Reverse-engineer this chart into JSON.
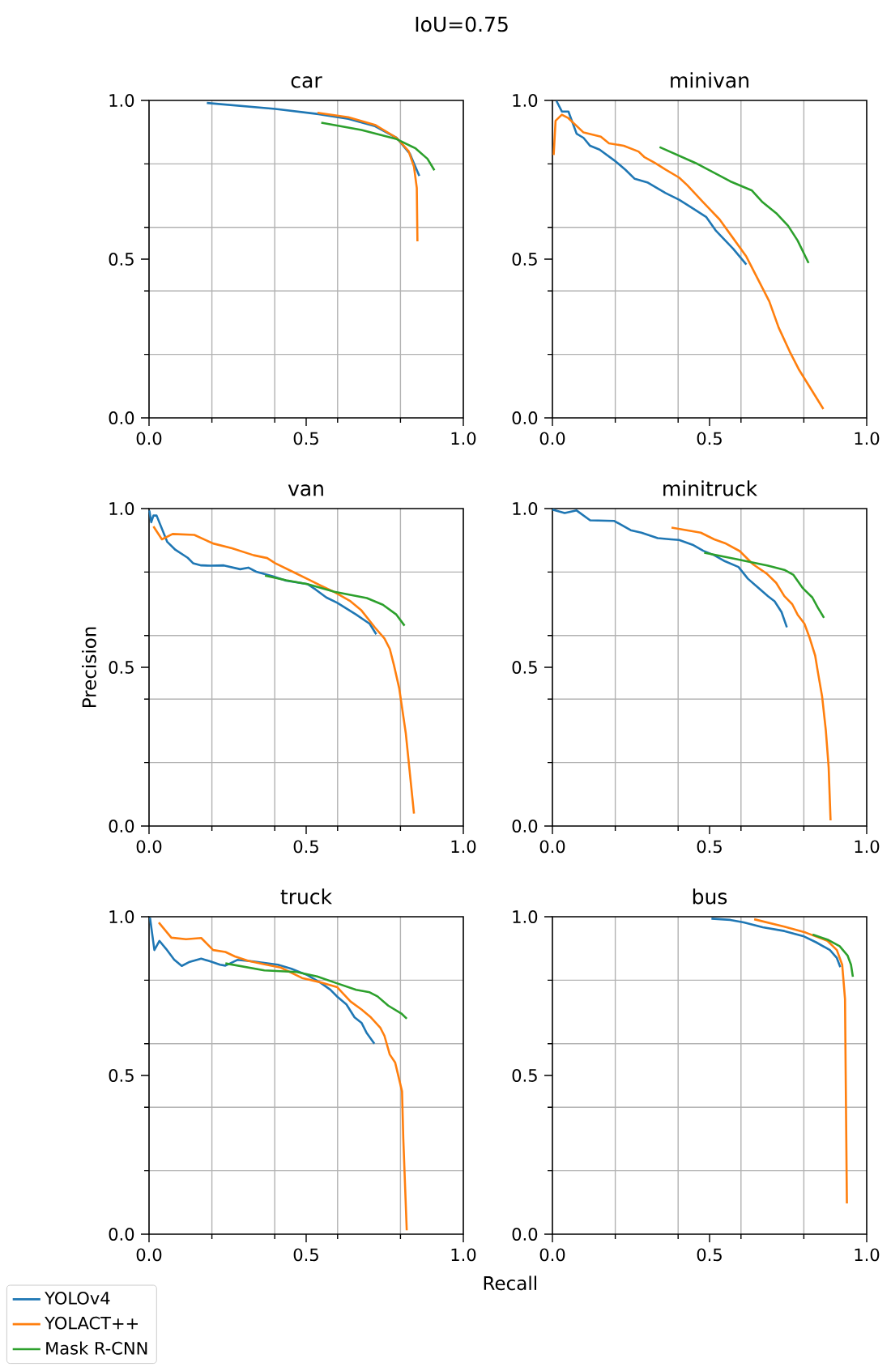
{
  "chart_data": [
    {
      "type": "line",
      "title": "car",
      "annotations": [
        "IoU=0.75"
      ],
      "xlim": [
        0,
        1
      ],
      "ylim": [
        0,
        1
      ],
      "grid": true,
      "xticks": [
        {
          "value": 0,
          "label": "0.0"
        },
        {
          "value": 0.2,
          "label": null
        },
        {
          "value": 0.4,
          "label": null
        },
        {
          "value": 0.5,
          "label": "0.5"
        },
        {
          "value": 0.6,
          "label": null
        },
        {
          "value": 0.8,
          "label": null
        },
        {
          "value": 1,
          "label": "1.0"
        }
      ],
      "yticks": [
        {
          "value": 0,
          "label": "0.0"
        },
        {
          "value": 0.2,
          "label": null
        },
        {
          "value": 0.4,
          "label": null
        },
        {
          "value": 0.5,
          "label": "0.5"
        },
        {
          "value": 0.6,
          "label": null
        },
        {
          "value": 0.8,
          "label": null
        },
        {
          "value": 1,
          "label": "1.0"
        }
      ],
      "series": [
        {
          "color": "#1f77b4",
          "x": [
            0.184,
            0.402,
            0.539,
            0.634,
            0.719,
            0.788,
            0.83,
            0.86
          ],
          "values": [
            0.992,
            0.973,
            0.957,
            0.942,
            0.919,
            0.882,
            0.832,
            0.762
          ]
        },
        {
          "color": "#ff7f0e",
          "x": [
            0.536,
            0.634,
            0.719,
            0.788,
            0.826,
            0.843,
            0.852,
            0.854
          ],
          "values": [
            0.961,
            0.947,
            0.923,
            0.882,
            0.84,
            0.791,
            0.724,
            0.556
          ]
        },
        {
          "color": "#2ca02c",
          "x": [
            0.548,
            0.676,
            0.788,
            0.848,
            0.886,
            0.908
          ],
          "values": [
            0.93,
            0.907,
            0.878,
            0.849,
            0.816,
            0.78
          ]
        }
      ]
    },
    {
      "type": "line",
      "title": "minivan",
      "xlim": [
        0,
        1
      ],
      "ylim": [
        0,
        1
      ],
      "grid": true,
      "xticks": [
        {
          "value": 0,
          "label": "0.0"
        },
        {
          "value": 0.2,
          "label": null
        },
        {
          "value": 0.4,
          "label": null
        },
        {
          "value": 0.5,
          "label": "0.5"
        },
        {
          "value": 0.6,
          "label": null
        },
        {
          "value": 0.8,
          "label": null
        },
        {
          "value": 1,
          "label": "1.0"
        }
      ],
      "yticks": [
        {
          "value": 0,
          "label": "0.0"
        },
        {
          "value": 0.2,
          "label": null
        },
        {
          "value": 0.4,
          "label": null
        },
        {
          "value": 0.5,
          "label": "0.5"
        },
        {
          "value": 0.6,
          "label": null
        },
        {
          "value": 0.8,
          "label": null
        },
        {
          "value": 1,
          "label": "1.0"
        }
      ],
      "series": [
        {
          "color": "#1f77b4",
          "x": [
            0.013,
            0.03,
            0.051,
            0.077,
            0.099,
            0.12,
            0.15,
            0.197,
            0.232,
            0.262,
            0.304,
            0.36,
            0.403,
            0.45,
            0.489,
            0.519,
            0.575,
            0.617
          ],
          "values": [
            0.998,
            0.965,
            0.965,
            0.895,
            0.882,
            0.857,
            0.845,
            0.811,
            0.782,
            0.753,
            0.741,
            0.708,
            0.687,
            0.658,
            0.633,
            0.591,
            0.533,
            0.483
          ]
        },
        {
          "color": "#ff7f0e",
          "x": [
            0.004,
            0.01,
            0.03,
            0.051,
            0.099,
            0.154,
            0.18,
            0.227,
            0.274,
            0.292,
            0.326,
            0.36,
            0.403,
            0.429,
            0.48,
            0.532,
            0.575,
            0.617,
            0.66,
            0.69,
            0.72,
            0.755,
            0.785,
            0.862
          ],
          "values": [
            0.828,
            0.936,
            0.955,
            0.944,
            0.899,
            0.886,
            0.865,
            0.857,
            0.839,
            0.822,
            0.803,
            0.782,
            0.757,
            0.733,
            0.679,
            0.625,
            0.566,
            0.508,
            0.425,
            0.367,
            0.284,
            0.209,
            0.151,
            0.028
          ]
        },
        {
          "color": "#2ca02c",
          "x": [
            0.341,
            0.455,
            0.566,
            0.635,
            0.669,
            0.712,
            0.75,
            0.78,
            0.815
          ],
          "values": [
            0.853,
            0.803,
            0.745,
            0.716,
            0.679,
            0.645,
            0.605,
            0.559,
            0.488
          ]
        }
      ]
    },
    {
      "type": "line",
      "title": "van",
      "ylabel": "Precision",
      "xlim": [
        0,
        1
      ],
      "ylim": [
        0,
        1
      ],
      "grid": true,
      "xticks": [
        {
          "value": 0,
          "label": "0.0"
        },
        {
          "value": 0.2,
          "label": null
        },
        {
          "value": 0.4,
          "label": null
        },
        {
          "value": 0.5,
          "label": "0.5"
        },
        {
          "value": 0.6,
          "label": null
        },
        {
          "value": 0.8,
          "label": null
        },
        {
          "value": 1,
          "label": "1.0"
        }
      ],
      "yticks": [
        {
          "value": 0,
          "label": "0.0"
        },
        {
          "value": 0.2,
          "label": null
        },
        {
          "value": 0.4,
          "label": null
        },
        {
          "value": 0.5,
          "label": "0.5"
        },
        {
          "value": 0.6,
          "label": null
        },
        {
          "value": 0.8,
          "label": null
        },
        {
          "value": 1,
          "label": "1.0"
        }
      ],
      "series": [
        {
          "color": "#1f77b4",
          "x": [
            0.001,
            0.007,
            0.014,
            0.024,
            0.058,
            0.084,
            0.123,
            0.14,
            0.166,
            0.196,
            0.238,
            0.29,
            0.316,
            0.341,
            0.393,
            0.436,
            0.504,
            0.53,
            0.564,
            0.599,
            0.659,
            0.702,
            0.723
          ],
          "values": [
            0.994,
            0.957,
            0.978,
            0.978,
            0.895,
            0.87,
            0.845,
            0.828,
            0.821,
            0.82,
            0.821,
            0.809,
            0.814,
            0.801,
            0.787,
            0.773,
            0.762,
            0.745,
            0.72,
            0.703,
            0.666,
            0.637,
            0.604
          ]
        },
        {
          "color": "#ff7f0e",
          "x": [
            0.014,
            0.041,
            0.075,
            0.144,
            0.204,
            0.264,
            0.333,
            0.376,
            0.401,
            0.461,
            0.513,
            0.547,
            0.59,
            0.641,
            0.676,
            0.719,
            0.749,
            0.766,
            0.779,
            0.796,
            0.817,
            0.843
          ],
          "values": [
            0.944,
            0.903,
            0.92,
            0.917,
            0.89,
            0.875,
            0.853,
            0.844,
            0.828,
            0.799,
            0.774,
            0.757,
            0.737,
            0.708,
            0.679,
            0.625,
            0.591,
            0.558,
            0.508,
            0.434,
            0.292,
            0.039
          ]
        },
        {
          "color": "#2ca02c",
          "x": [
            0.369,
            0.436,
            0.504,
            0.59,
            0.693,
            0.744,
            0.787,
            0.813
          ],
          "values": [
            0.789,
            0.774,
            0.762,
            0.738,
            0.718,
            0.697,
            0.666,
            0.631
          ]
        }
      ]
    },
    {
      "type": "line",
      "title": "minitruck",
      "xlim": [
        0,
        1
      ],
      "ylim": [
        0,
        1
      ],
      "grid": true,
      "xticks": [
        {
          "value": 0,
          "label": "0.0"
        },
        {
          "value": 0.2,
          "label": null
        },
        {
          "value": 0.4,
          "label": null
        },
        {
          "value": 0.5,
          "label": "0.5"
        },
        {
          "value": 0.6,
          "label": null
        },
        {
          "value": 0.8,
          "label": null
        },
        {
          "value": 1,
          "label": "1.0"
        }
      ],
      "yticks": [
        {
          "value": 0,
          "label": "0.0"
        },
        {
          "value": 0.2,
          "label": null
        },
        {
          "value": 0.4,
          "label": null
        },
        {
          "value": 0.5,
          "label": "0.5"
        },
        {
          "value": 0.6,
          "label": null
        },
        {
          "value": 0.8,
          "label": null
        },
        {
          "value": 1,
          "label": "1.0"
        }
      ],
      "series": [
        {
          "color": "#1f77b4",
          "x": [
            0,
            0.039,
            0.077,
            0.12,
            0.197,
            0.249,
            0.283,
            0.335,
            0.377,
            0.403,
            0.446,
            0.48,
            0.515,
            0.549,
            0.592,
            0.622,
            0.652,
            0.686,
            0.707,
            0.729,
            0.746
          ],
          "values": [
            0.997,
            0.986,
            0.994,
            0.963,
            0.961,
            0.932,
            0.924,
            0.907,
            0.903,
            0.901,
            0.886,
            0.867,
            0.853,
            0.834,
            0.816,
            0.779,
            0.753,
            0.724,
            0.708,
            0.674,
            0.626
          ]
        },
        {
          "color": "#ff7f0e",
          "x": [
            0.379,
            0.472,
            0.515,
            0.549,
            0.596,
            0.639,
            0.682,
            0.712,
            0.738,
            0.763,
            0.78,
            0.802,
            0.819,
            0.836,
            0.845,
            0.858,
            0.87,
            0.879,
            0.885
          ],
          "values": [
            0.94,
            0.924,
            0.903,
            0.891,
            0.866,
            0.824,
            0.795,
            0.766,
            0.724,
            0.699,
            0.666,
            0.637,
            0.591,
            0.537,
            0.483,
            0.409,
            0.301,
            0.184,
            0.018
          ]
        },
        {
          "color": "#2ca02c",
          "x": [
            0.483,
            0.583,
            0.686,
            0.738,
            0.767,
            0.797,
            0.827,
            0.845,
            0.864
          ],
          "values": [
            0.861,
            0.841,
            0.82,
            0.807,
            0.791,
            0.749,
            0.72,
            0.687,
            0.656
          ]
        }
      ]
    },
    {
      "type": "line",
      "title": "truck",
      "xlabel": "Recall",
      "legend": "bottom left",
      "xlim": [
        0,
        1
      ],
      "ylim": [
        0,
        1
      ],
      "grid": true,
      "xticks": [
        {
          "value": 0,
          "label": "0.0"
        },
        {
          "value": 0.2,
          "label": null
        },
        {
          "value": 0.4,
          "label": null
        },
        {
          "value": 0.5,
          "label": "0.5"
        },
        {
          "value": 0.6,
          "label": null
        },
        {
          "value": 0.8,
          "label": null
        },
        {
          "value": 1,
          "label": "1.0"
        }
      ],
      "yticks": [
        {
          "value": 0,
          "label": "0.0"
        },
        {
          "value": 0.2,
          "label": null
        },
        {
          "value": 0.4,
          "label": null
        },
        {
          "value": 0.5,
          "label": "0.5"
        },
        {
          "value": 0.6,
          "label": null
        },
        {
          "value": 0.8,
          "label": null
        },
        {
          "value": 1,
          "label": "1.0"
        }
      ],
      "series": [
        {
          "name": "YOLOv4",
          "color": "#1f77b4",
          "x": [
            0.003,
            0.017,
            0.033,
            0.054,
            0.08,
            0.104,
            0.127,
            0.166,
            0.196,
            0.226,
            0.243,
            0.281,
            0.333,
            0.41,
            0.453,
            0.504,
            0.547,
            0.577,
            0.599,
            0.628,
            0.654,
            0.676,
            0.693,
            0.717
          ],
          "values": [
            0.997,
            0.895,
            0.924,
            0.899,
            0.865,
            0.845,
            0.857,
            0.868,
            0.859,
            0.849,
            0.846,
            0.864,
            0.859,
            0.849,
            0.836,
            0.816,
            0.791,
            0.77,
            0.748,
            0.724,
            0.683,
            0.666,
            0.633,
            0.6
          ]
        },
        {
          "name": "YOLACT++",
          "color": "#ff7f0e",
          "x": [
            0.031,
            0.071,
            0.118,
            0.166,
            0.204,
            0.243,
            0.273,
            0.316,
            0.367,
            0.419,
            0.487,
            0.539,
            0.599,
            0.641,
            0.676,
            0.706,
            0.736,
            0.749,
            0.766,
            0.783,
            0.805,
            0.809,
            0.82
          ],
          "values": [
            0.982,
            0.934,
            0.929,
            0.933,
            0.895,
            0.889,
            0.875,
            0.861,
            0.85,
            0.84,
            0.807,
            0.795,
            0.778,
            0.733,
            0.708,
            0.683,
            0.65,
            0.625,
            0.566,
            0.541,
            0.45,
            0.301,
            0.012
          ]
        },
        {
          "name": "Mask R-CNN",
          "color": "#2ca02c",
          "x": [
            0.243,
            0.367,
            0.47,
            0.535,
            0.59,
            0.659,
            0.702,
            0.727,
            0.761,
            0.803,
            0.82
          ],
          "values": [
            0.853,
            0.831,
            0.826,
            0.812,
            0.793,
            0.77,
            0.762,
            0.749,
            0.72,
            0.695,
            0.679
          ]
        }
      ]
    },
    {
      "type": "line",
      "title": "bus",
      "xlim": [
        0,
        1
      ],
      "ylim": [
        0,
        1
      ],
      "grid": true,
      "xticks": [
        {
          "value": 0,
          "label": "0.0"
        },
        {
          "value": 0.2,
          "label": null
        },
        {
          "value": 0.4,
          "label": null
        },
        {
          "value": 0.5,
          "label": "0.5"
        },
        {
          "value": 0.6,
          "label": null
        },
        {
          "value": 0.8,
          "label": null
        },
        {
          "value": 1,
          "label": "1.0"
        }
      ],
      "yticks": [
        {
          "value": 0,
          "label": "0.0"
        },
        {
          "value": 0.2,
          "label": null
        },
        {
          "value": 0.4,
          "label": null
        },
        {
          "value": 0.5,
          "label": "0.5"
        },
        {
          "value": 0.6,
          "label": null
        },
        {
          "value": 0.8,
          "label": null
        },
        {
          "value": 1,
          "label": "1.0"
        }
      ],
      "series": [
        {
          "color": "#1f77b4",
          "x": [
            0.506,
            0.566,
            0.609,
            0.669,
            0.738,
            0.798,
            0.84,
            0.883,
            0.905,
            0.916
          ],
          "values": [
            0.994,
            0.99,
            0.982,
            0.967,
            0.955,
            0.939,
            0.919,
            0.895,
            0.87,
            0.841
          ]
        },
        {
          "color": "#ff7f0e",
          "x": [
            0.642,
            0.738,
            0.806,
            0.875,
            0.905,
            0.922,
            0.931,
            0.933,
            0.937
          ],
          "values": [
            0.992,
            0.969,
            0.95,
            0.924,
            0.895,
            0.849,
            0.741,
            0.517,
            0.097
          ]
        },
        {
          "color": "#2ca02c",
          "x": [
            0.828,
            0.875,
            0.914,
            0.939,
            0.95,
            0.956
          ],
          "values": [
            0.944,
            0.928,
            0.907,
            0.878,
            0.849,
            0.811
          ]
        }
      ]
    }
  ]
}
